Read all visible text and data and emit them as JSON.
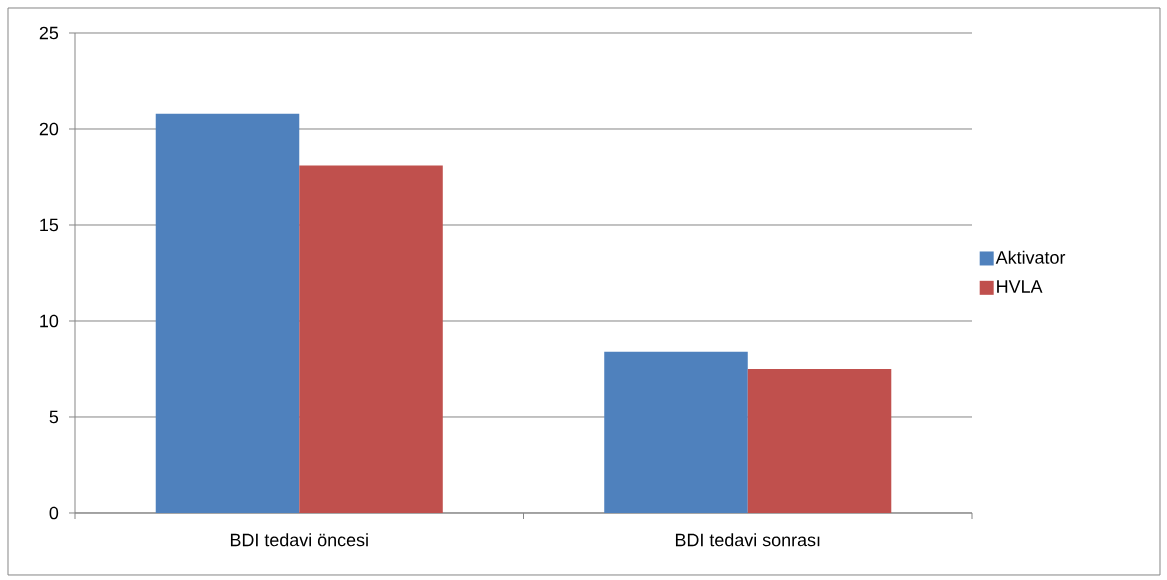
{
  "chart_data": {
    "type": "bar",
    "categories": [
      "BDI tedavi  öncesi",
      "BDI tedavi sonrası"
    ],
    "series": [
      {
        "name": "Aktivator",
        "color": "#4f81bd",
        "values": [
          20.8,
          8.4
        ]
      },
      {
        "name": "HVLA",
        "color": "#c0504d",
        "values": [
          18.1,
          7.5
        ]
      }
    ],
    "ylim": [
      0,
      25
    ],
    "yticks": [
      0,
      5,
      10,
      15,
      20,
      25
    ],
    "grid": "y",
    "legend": "right"
  }
}
